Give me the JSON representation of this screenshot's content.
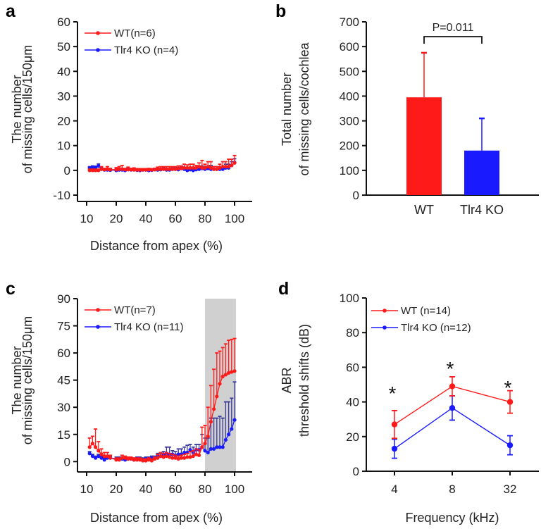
{
  "colors": {
    "wt": "#ff1a1a",
    "ko": "#1a1aff",
    "ko_err": "#3a3a9a",
    "shade": "#d0d0d0",
    "axis": "#111111"
  },
  "chart_data": [
    {
      "panel": "a",
      "type": "line",
      "title": "",
      "xlabel": "Distance from apex (%)",
      "ylabel_line1": "The number",
      "ylabel_line2": "of missing cells/150μm",
      "x_ticks": [
        10,
        20,
        40,
        60,
        80,
        100
      ],
      "y_ticks": [
        -10,
        0,
        10,
        20,
        30,
        40,
        50,
        60
      ],
      "ylim": [
        -10,
        60
      ],
      "legend": [
        {
          "label": "WT(n=6)",
          "series": "wt"
        },
        {
          "label": "Tlr4 KO (n=4)",
          "series": "ko"
        }
      ],
      "legend_position": "top-left",
      "series": [
        {
          "name": "WT(n=6)",
          "key": "wt",
          "x": [
            11,
            12,
            13,
            14,
            15,
            16,
            17,
            18,
            20,
            22,
            24,
            26,
            28,
            30,
            32,
            34,
            36,
            38,
            40,
            42,
            44,
            46,
            48,
            50,
            52,
            54,
            56,
            58,
            60,
            62,
            64,
            66,
            68,
            70,
            72,
            74,
            76,
            78,
            80,
            82,
            84,
            86,
            88,
            90,
            92,
            94,
            96,
            98,
            100
          ],
          "y": [
            0,
            0,
            0,
            0,
            0.5,
            0.3,
            0.5,
            0.3,
            0.3,
            0.5,
            0.5,
            0.3,
            0.3,
            0.3,
            0.2,
            0.2,
            0.2,
            0.2,
            0.2,
            0.3,
            0.2,
            0.3,
            0.5,
            0.5,
            0.5,
            0.5,
            0.5,
            0.5,
            0.5,
            0.8,
            0.8,
            1,
            1,
            1,
            1,
            1,
            1.5,
            1,
            1,
            1.5,
            1,
            0.5,
            0.5,
            1,
            1.5,
            1.5,
            1.5,
            2,
            3
          ],
          "err": [
            0.5,
            0.5,
            0.5,
            0.5,
            1,
            0.5,
            1,
            0.5,
            0.8,
            1,
            1.5,
            0.5,
            1,
            0.5,
            0.8,
            0.5,
            0.5,
            0.5,
            0.5,
            0.5,
            0.5,
            0.5,
            0.8,
            1,
            1,
            1,
            1,
            1,
            1,
            1,
            1,
            1.5,
            1.2,
            1.5,
            1.5,
            1,
            1.5,
            3,
            1.5,
            2,
            2.5,
            1,
            1,
            1.5,
            2,
            2,
            3,
            2.5,
            3
          ]
        },
        {
          "name": "Tlr4 KO (n=4)",
          "key": "ko",
          "x": [
            11,
            12,
            13,
            14,
            15,
            16,
            17,
            18,
            20,
            22,
            24,
            26,
            28,
            30,
            32,
            34,
            36,
            38,
            40,
            42,
            44,
            46,
            48,
            50,
            52,
            54,
            56,
            58,
            60,
            62,
            64,
            66,
            68,
            70,
            72,
            74,
            76,
            78,
            80,
            82,
            84,
            86,
            88,
            90,
            92,
            94,
            96,
            98,
            100
          ],
          "y": [
            1,
            1.3,
            1.2,
            1.8,
            0.5,
            0.2,
            0.2,
            0.1,
            0,
            0.2,
            0.2,
            0,
            0.5,
            0.2,
            0.3,
            0.1,
            0,
            0.2,
            0.2,
            0,
            0.1,
            0.3,
            0.2,
            0.3,
            0.5,
            0.2,
            0.2,
            0.5,
            0.5,
            0.3,
            0.8,
            0.5,
            0,
            0.3,
            0,
            0.3,
            0.5,
            0.8,
            0.5,
            0.8,
            0.5,
            0.5,
            0.5,
            0.5,
            0.5,
            1,
            1,
            2,
            3.2
          ],
          "err": [
            0.5,
            0.5,
            0.5,
            0.8,
            0.5,
            0.5,
            0.5,
            0.5,
            0.5,
            0.5,
            0.5,
            0.5,
            0.5,
            0.5,
            0.5,
            0.5,
            0.5,
            0.5,
            0.5,
            0.5,
            0.5,
            0.5,
            0.5,
            0.5,
            0.5,
            0.5,
            0.5,
            0.5,
            0.5,
            0.5,
            0.5,
            0.5,
            1,
            0.8,
            1,
            0.8,
            0.8,
            1,
            1,
            1,
            1.5,
            1,
            1,
            1,
            1,
            1.5,
            1.5,
            1.5,
            1.5
          ]
        }
      ]
    },
    {
      "panel": "b",
      "type": "bar",
      "xlabel": "",
      "ylabel_line1": "Total number",
      "ylabel_line2": "of missing cells/cochlea",
      "categories": [
        "WT",
        "Tlr4 KO"
      ],
      "values": [
        395,
        180
      ],
      "errors": [
        180,
        130
      ],
      "y_ticks": [
        0,
        100,
        200,
        300,
        400,
        500,
        600,
        700
      ],
      "ylim": [
        0,
        700
      ],
      "annotation": "P=0.011"
    },
    {
      "panel": "c",
      "type": "line",
      "xlabel": "Distance from apex (%)",
      "ylabel_line1": "The number",
      "ylabel_line2": "of missing cells/150μm",
      "x_ticks": [
        10,
        20,
        40,
        60,
        80,
        100
      ],
      "y_ticks": [
        0,
        15,
        30,
        45,
        60,
        75,
        90
      ],
      "ylim": [
        -10,
        90
      ],
      "shaded_region_x": [
        80,
        100
      ],
      "legend": [
        {
          "label": "WT(n=7)",
          "series": "wt"
        },
        {
          "label": "Tlr4 KO (n=11)",
          "series": "ko"
        }
      ],
      "legend_position": "top-left",
      "series": [
        {
          "name": "WT(n=7)",
          "key": "wt",
          "x": [
            11,
            12,
            13,
            14,
            15,
            16,
            17,
            18,
            20,
            22,
            24,
            26,
            28,
            30,
            32,
            34,
            36,
            38,
            40,
            42,
            44,
            46,
            48,
            50,
            52,
            54,
            56,
            58,
            60,
            62,
            64,
            66,
            68,
            70,
            72,
            74,
            76,
            78,
            80,
            82,
            84,
            86,
            88,
            90,
            92,
            94,
            96,
            98,
            100
          ],
          "y": [
            8,
            10,
            8,
            6,
            4,
            3,
            3,
            2,
            1,
            1,
            2,
            2,
            1.5,
            1.5,
            1,
            1,
            1,
            0.5,
            0.5,
            1,
            0.5,
            1.5,
            2,
            3,
            2.5,
            3,
            2.5,
            2,
            2,
            1.5,
            2,
            2,
            2.5,
            2.5,
            3,
            4,
            3.5,
            8,
            10,
            14,
            22,
            29,
            36,
            43,
            47,
            48,
            49,
            49.5,
            50
          ],
          "err": [
            5,
            4,
            10,
            5,
            3,
            2,
            2,
            1.5,
            1,
            1,
            1.5,
            1,
            1,
            1,
            1,
            1,
            1,
            1,
            1,
            1,
            1,
            1,
            2,
            2,
            2,
            2,
            2,
            2,
            1.5,
            1.5,
            1.5,
            2,
            2,
            3,
            3,
            3,
            3,
            11,
            10,
            16,
            20,
            22,
            24,
            18,
            16,
            17,
            18,
            18,
            18
          ]
        },
        {
          "name": "Tlr4 KO (n=11)",
          "key": "ko",
          "x": [
            11,
            12,
            13,
            14,
            15,
            16,
            17,
            18,
            20,
            22,
            24,
            26,
            28,
            30,
            32,
            34,
            36,
            38,
            40,
            42,
            44,
            46,
            48,
            50,
            52,
            54,
            56,
            58,
            60,
            62,
            64,
            66,
            68,
            70,
            72,
            74,
            76,
            78,
            80,
            82,
            84,
            86,
            88,
            90,
            92,
            94,
            96,
            98,
            100
          ],
          "y": [
            4.5,
            3,
            2,
            3,
            2,
            1,
            2,
            2,
            1.5,
            1.5,
            1.5,
            1,
            1.5,
            1.5,
            1,
            1.5,
            1.5,
            1,
            1.5,
            1.5,
            2,
            2,
            3,
            3,
            4,
            4,
            4,
            4,
            3.5,
            4,
            4,
            5,
            5,
            6.5,
            5,
            6.5,
            6.5,
            8,
            6,
            5,
            7,
            7,
            8,
            8,
            8,
            12,
            15,
            18,
            23
          ],
          "err": [
            1,
            1,
            1,
            1,
            1,
            1,
            1,
            1,
            1,
            1,
            1,
            1,
            1,
            1,
            1,
            1,
            1,
            1,
            1,
            1,
            1,
            1,
            1.5,
            1.5,
            1.5,
            4,
            4,
            2,
            2,
            3,
            3,
            3,
            4,
            3,
            3,
            3,
            3,
            7,
            7,
            8,
            17,
            17,
            16,
            17,
            16,
            21,
            18,
            17,
            21
          ]
        }
      ]
    },
    {
      "panel": "d",
      "type": "line",
      "xlabel": "Frequency (kHz)",
      "ylabel_line1": "ABR",
      "ylabel_line2": "threshold shifts (dB)",
      "categories": [
        "4",
        "8",
        "32"
      ],
      "y_ticks": [
        0,
        20,
        40,
        60,
        80,
        100
      ],
      "ylim": [
        0,
        100
      ],
      "legend": [
        {
          "label": "WT (n=14)",
          "series": "wt"
        },
        {
          "label": "Tlr4 KO (n=12)",
          "series": "ko"
        }
      ],
      "legend_position": "top-left",
      "significance": [
        "*",
        "*",
        "*"
      ],
      "series": [
        {
          "name": "WT (n=14)",
          "key": "wt",
          "values": [
            27,
            49,
            40
          ],
          "errors": [
            8,
            5.5,
            6.5
          ]
        },
        {
          "name": "Tlr4 KO (n=12)",
          "key": "ko",
          "values": [
            13,
            36.5,
            15
          ],
          "errors": [
            5.5,
            7,
            5.5
          ]
        }
      ]
    }
  ],
  "panel_labels": [
    "a",
    "b",
    "c",
    "d"
  ]
}
